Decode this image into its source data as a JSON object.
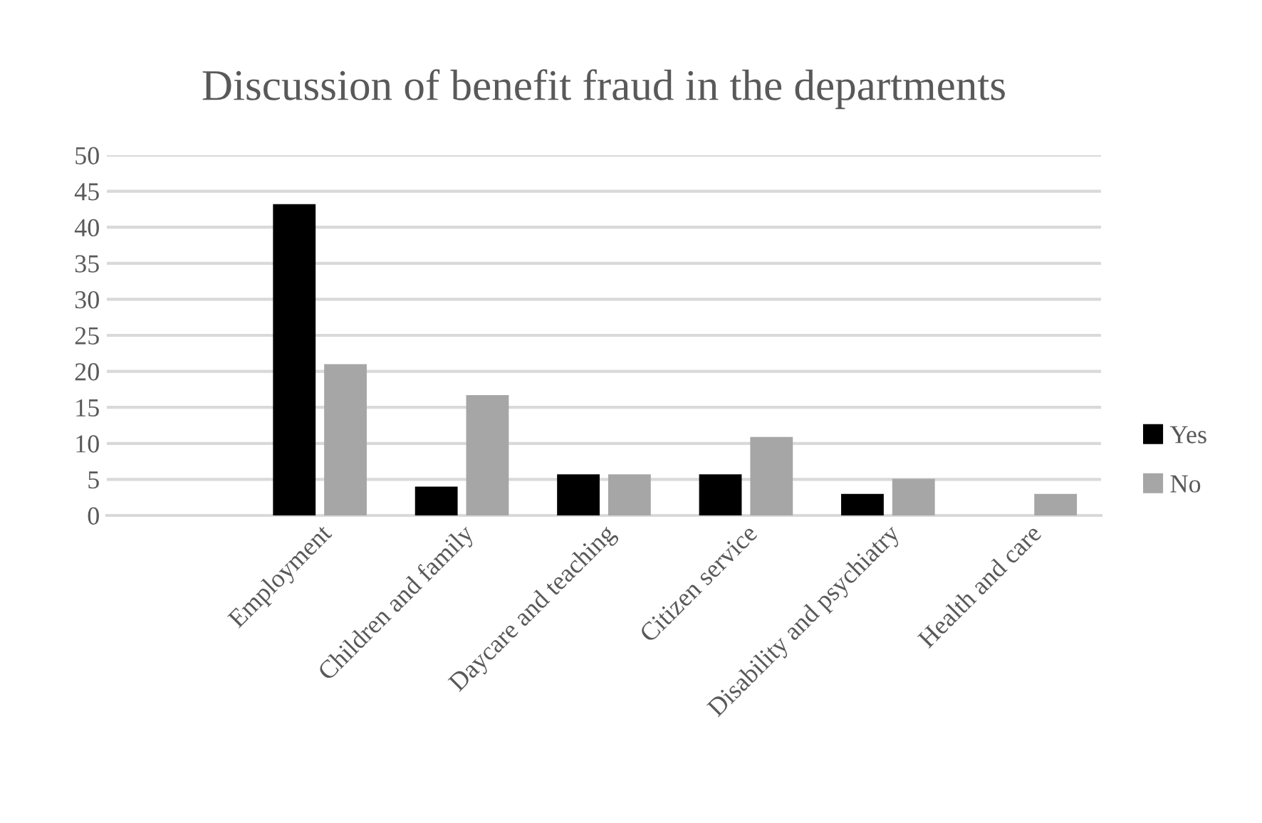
{
  "chart_data": {
    "type": "bar",
    "title": "Discussion of benefit fraud in the departments",
    "categories": [
      null,
      "Employment",
      "Children and family",
      "Daycare and teaching",
      "Citizen service",
      "Disability and psychiatry",
      "Health and care"
    ],
    "series": [
      {
        "name": "Yes",
        "color": "#000000",
        "values": [
          null,
          43.2,
          4.0,
          5.7,
          5.7,
          3.0,
          null
        ]
      },
      {
        "name": "No",
        "color": "#a6a6a6",
        "values": [
          null,
          21.0,
          16.7,
          5.7,
          10.9,
          5.1,
          3.0
        ]
      }
    ],
    "ylim": [
      0,
      50
    ],
    "yticks": [
      0,
      5,
      10,
      15,
      20,
      25,
      30,
      35,
      40,
      45,
      50
    ],
    "grid": "y",
    "legend": "right"
  }
}
